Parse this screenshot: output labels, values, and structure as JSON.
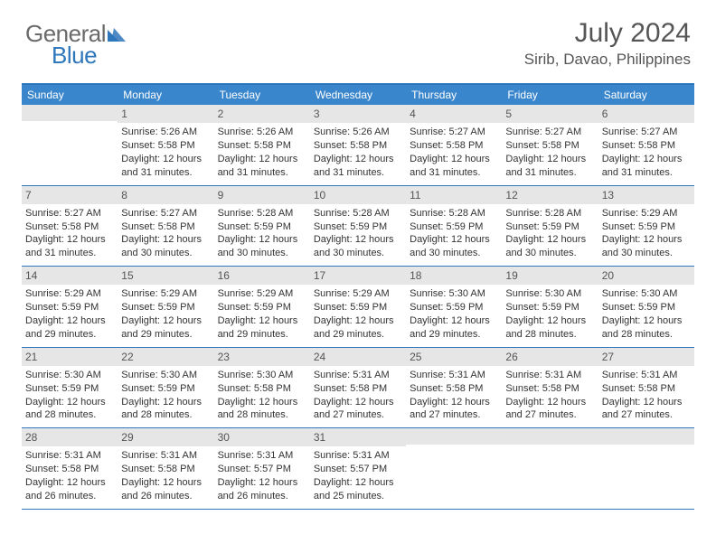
{
  "logo": {
    "general": "General",
    "blue": "Blue"
  },
  "header": {
    "month_title": "July 2024",
    "location": "Sirib, Davao, Philippines"
  },
  "colors": {
    "brand_blue": "#2f77bb",
    "header_blue": "#3a86cd",
    "daynum_bg": "#e6e6e6",
    "logo_grey": "#6a6a6a",
    "text": "#333333"
  },
  "day_names": [
    "Sunday",
    "Monday",
    "Tuesday",
    "Wednesday",
    "Thursday",
    "Friday",
    "Saturday"
  ],
  "font": {
    "title_size": 30,
    "location_size": 17,
    "header_size": 12,
    "cell_size": 11
  },
  "weeks": [
    [
      {
        "n": "",
        "blank": true
      },
      {
        "n": "1",
        "sr": "Sunrise: 5:26 AM",
        "ss": "Sunset: 5:58 PM",
        "d1": "Daylight: 12 hours",
        "d2": "and 31 minutes."
      },
      {
        "n": "2",
        "sr": "Sunrise: 5:26 AM",
        "ss": "Sunset: 5:58 PM",
        "d1": "Daylight: 12 hours",
        "d2": "and 31 minutes."
      },
      {
        "n": "3",
        "sr": "Sunrise: 5:26 AM",
        "ss": "Sunset: 5:58 PM",
        "d1": "Daylight: 12 hours",
        "d2": "and 31 minutes."
      },
      {
        "n": "4",
        "sr": "Sunrise: 5:27 AM",
        "ss": "Sunset: 5:58 PM",
        "d1": "Daylight: 12 hours",
        "d2": "and 31 minutes."
      },
      {
        "n": "5",
        "sr": "Sunrise: 5:27 AM",
        "ss": "Sunset: 5:58 PM",
        "d1": "Daylight: 12 hours",
        "d2": "and 31 minutes."
      },
      {
        "n": "6",
        "sr": "Sunrise: 5:27 AM",
        "ss": "Sunset: 5:58 PM",
        "d1": "Daylight: 12 hours",
        "d2": "and 31 minutes."
      }
    ],
    [
      {
        "n": "7",
        "sr": "Sunrise: 5:27 AM",
        "ss": "Sunset: 5:58 PM",
        "d1": "Daylight: 12 hours",
        "d2": "and 31 minutes."
      },
      {
        "n": "8",
        "sr": "Sunrise: 5:27 AM",
        "ss": "Sunset: 5:58 PM",
        "d1": "Daylight: 12 hours",
        "d2": "and 30 minutes."
      },
      {
        "n": "9",
        "sr": "Sunrise: 5:28 AM",
        "ss": "Sunset: 5:59 PM",
        "d1": "Daylight: 12 hours",
        "d2": "and 30 minutes."
      },
      {
        "n": "10",
        "sr": "Sunrise: 5:28 AM",
        "ss": "Sunset: 5:59 PM",
        "d1": "Daylight: 12 hours",
        "d2": "and 30 minutes."
      },
      {
        "n": "11",
        "sr": "Sunrise: 5:28 AM",
        "ss": "Sunset: 5:59 PM",
        "d1": "Daylight: 12 hours",
        "d2": "and 30 minutes."
      },
      {
        "n": "12",
        "sr": "Sunrise: 5:28 AM",
        "ss": "Sunset: 5:59 PM",
        "d1": "Daylight: 12 hours",
        "d2": "and 30 minutes."
      },
      {
        "n": "13",
        "sr": "Sunrise: 5:29 AM",
        "ss": "Sunset: 5:59 PM",
        "d1": "Daylight: 12 hours",
        "d2": "and 30 minutes."
      }
    ],
    [
      {
        "n": "14",
        "sr": "Sunrise: 5:29 AM",
        "ss": "Sunset: 5:59 PM",
        "d1": "Daylight: 12 hours",
        "d2": "and 29 minutes."
      },
      {
        "n": "15",
        "sr": "Sunrise: 5:29 AM",
        "ss": "Sunset: 5:59 PM",
        "d1": "Daylight: 12 hours",
        "d2": "and 29 minutes."
      },
      {
        "n": "16",
        "sr": "Sunrise: 5:29 AM",
        "ss": "Sunset: 5:59 PM",
        "d1": "Daylight: 12 hours",
        "d2": "and 29 minutes."
      },
      {
        "n": "17",
        "sr": "Sunrise: 5:29 AM",
        "ss": "Sunset: 5:59 PM",
        "d1": "Daylight: 12 hours",
        "d2": "and 29 minutes."
      },
      {
        "n": "18",
        "sr": "Sunrise: 5:30 AM",
        "ss": "Sunset: 5:59 PM",
        "d1": "Daylight: 12 hours",
        "d2": "and 29 minutes."
      },
      {
        "n": "19",
        "sr": "Sunrise: 5:30 AM",
        "ss": "Sunset: 5:59 PM",
        "d1": "Daylight: 12 hours",
        "d2": "and 28 minutes."
      },
      {
        "n": "20",
        "sr": "Sunrise: 5:30 AM",
        "ss": "Sunset: 5:59 PM",
        "d1": "Daylight: 12 hours",
        "d2": "and 28 minutes."
      }
    ],
    [
      {
        "n": "21",
        "sr": "Sunrise: 5:30 AM",
        "ss": "Sunset: 5:59 PM",
        "d1": "Daylight: 12 hours",
        "d2": "and 28 minutes."
      },
      {
        "n": "22",
        "sr": "Sunrise: 5:30 AM",
        "ss": "Sunset: 5:59 PM",
        "d1": "Daylight: 12 hours",
        "d2": "and 28 minutes."
      },
      {
        "n": "23",
        "sr": "Sunrise: 5:30 AM",
        "ss": "Sunset: 5:58 PM",
        "d1": "Daylight: 12 hours",
        "d2": "and 28 minutes."
      },
      {
        "n": "24",
        "sr": "Sunrise: 5:31 AM",
        "ss": "Sunset: 5:58 PM",
        "d1": "Daylight: 12 hours",
        "d2": "and 27 minutes."
      },
      {
        "n": "25",
        "sr": "Sunrise: 5:31 AM",
        "ss": "Sunset: 5:58 PM",
        "d1": "Daylight: 12 hours",
        "d2": "and 27 minutes."
      },
      {
        "n": "26",
        "sr": "Sunrise: 5:31 AM",
        "ss": "Sunset: 5:58 PM",
        "d1": "Daylight: 12 hours",
        "d2": "and 27 minutes."
      },
      {
        "n": "27",
        "sr": "Sunrise: 5:31 AM",
        "ss": "Sunset: 5:58 PM",
        "d1": "Daylight: 12 hours",
        "d2": "and 27 minutes."
      }
    ],
    [
      {
        "n": "28",
        "sr": "Sunrise: 5:31 AM",
        "ss": "Sunset: 5:58 PM",
        "d1": "Daylight: 12 hours",
        "d2": "and 26 minutes."
      },
      {
        "n": "29",
        "sr": "Sunrise: 5:31 AM",
        "ss": "Sunset: 5:58 PM",
        "d1": "Daylight: 12 hours",
        "d2": "and 26 minutes."
      },
      {
        "n": "30",
        "sr": "Sunrise: 5:31 AM",
        "ss": "Sunset: 5:57 PM",
        "d1": "Daylight: 12 hours",
        "d2": "and 26 minutes."
      },
      {
        "n": "31",
        "sr": "Sunrise: 5:31 AM",
        "ss": "Sunset: 5:57 PM",
        "d1": "Daylight: 12 hours",
        "d2": "and 25 minutes."
      },
      {
        "n": "",
        "blank": true
      },
      {
        "n": "",
        "blank": true
      },
      {
        "n": "",
        "blank": true
      }
    ]
  ]
}
